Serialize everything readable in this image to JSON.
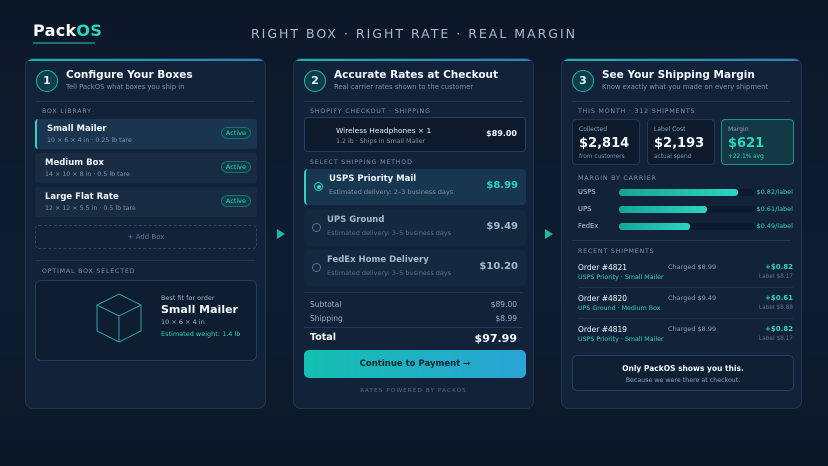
{
  "brand": {
    "pack": "Pack",
    "os": "OS"
  },
  "tagline": "RIGHT BOX · RIGHT RATE · REAL MARGIN",
  "panels": [
    {
      "step": "1",
      "title": "Configure Your Boxes",
      "subtitle": "Tell PackOS what boxes you ship in",
      "section": "BOX LIBRARY",
      "boxes": [
        {
          "name": "Small Mailer",
          "dims": "10 × 6 × 4 in · 0.25 lb tare",
          "badge": "Active"
        },
        {
          "name": "Medium Box",
          "dims": "14 × 10 × 8 in · 0.5 lb tare",
          "badge": "Active"
        },
        {
          "name": "Large Flat Rate",
          "dims": "12 × 12 × 5.5 in · 0.5 lb tare",
          "badge": "Active"
        }
      ],
      "add_box": "+ Add Box",
      "optimal_section": "OPTIMAL BOX SELECTED",
      "optimal": {
        "small": "Best fit for order",
        "name": "Small Mailer",
        "dims": "10 × 6 × 4 in",
        "weight": "Estimated weight: 1.4 lb"
      }
    },
    {
      "step": "2",
      "title": "Accurate Rates at Checkout",
      "subtitle": "Real carrier rates shown to the customer",
      "section": "SHOPIFY CHECKOUT · SHIPPING",
      "order": {
        "item": "Wireless Headphones × 1",
        "sub": "1.2 lb · Ships in Small Mailer",
        "price": "$89.00"
      },
      "method_section": "SELECT SHIPPING METHOD",
      "rates": [
        {
          "name": "USPS Priority Mail",
          "delivery": "Estimated delivery: 2–3 business days",
          "price": "$8.99"
        },
        {
          "name": "UPS Ground",
          "delivery": "Estimated delivery: 3–5 business days",
          "price": "$9.49"
        },
        {
          "name": "FedEx Home Delivery",
          "delivery": "Estimated delivery: 3–5 business days",
          "price": "$10.20"
        }
      ],
      "subtotal_label": "Subtotal",
      "subtotal": "$89.00",
      "shipping_label": "Shipping",
      "shipping": "$8.99",
      "total_label": "Total",
      "total": "$97.99",
      "cta": "Continue to Payment →",
      "powered": "RATES POWERED BY PACKOS"
    },
    {
      "step": "3",
      "title": "See Your Shipping Margin",
      "subtitle": "Know exactly what you made on every shipment",
      "section": "THIS MONTH · 312 SHIPMENTS",
      "stats": [
        {
          "label": "Collected",
          "value": "$2,814",
          "sub": "from customers"
        },
        {
          "label": "Label Cost",
          "value": "$2,193",
          "sub": "actual spend"
        },
        {
          "label": "Margin",
          "value": "$621",
          "sub": "+22.1% avg"
        }
      ],
      "carrier_section": "MARGIN BY CARRIER",
      "carriers": [
        {
          "name": "USPS",
          "value": "$0.82/label",
          "level": 0.82
        },
        {
          "name": "UPS",
          "value": "$0.61/label",
          "level": 0.61
        },
        {
          "name": "FedEx",
          "value": "$0.49/label",
          "level": 0.49
        }
      ],
      "recent_section": "RECENT SHIPMENTS",
      "shipments": [
        {
          "order": "Order #4821",
          "carrier": "USPS Priority · Small Mailer",
          "charged": "Charged $8.99",
          "margin": "+$0.82",
          "label": "Label $8.17"
        },
        {
          "order": "Order #4820",
          "carrier": "UPS Ground · Medium Box",
          "charged": "Charged $9.49",
          "margin": "+$0.61",
          "label": "Label $8.88"
        },
        {
          "order": "Order #4819",
          "carrier": "USPS Priority · Small Mailer",
          "charged": "Charged $8.99",
          "margin": "+$0.82",
          "label": "Label $8.17"
        }
      ],
      "footer_title": "Only PackOS shows you this.",
      "footer_sub": "Because we were there at checkout."
    }
  ],
  "colors": {
    "accent": "#2dd4bf",
    "background": "#0b1828",
    "panel": "#122238"
  },
  "icons": [
    "box-cube-icon",
    "arrow-right-icon",
    "radio-icon"
  ]
}
